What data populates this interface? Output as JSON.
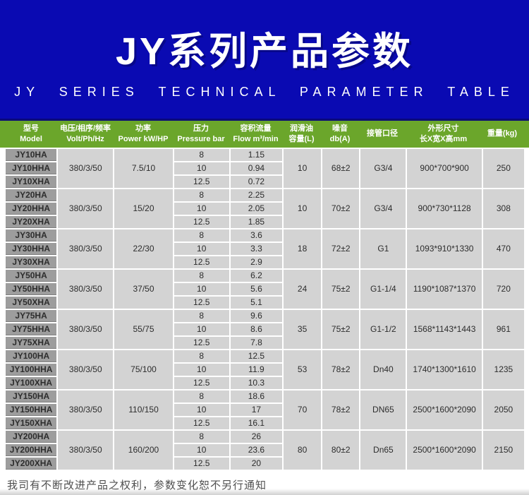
{
  "banner": {
    "title": "JY系列产品参数",
    "subtitle": "JY SERIES TECHNICAL PARAMETER TABLE",
    "bg_color": "#0a0ab2",
    "border_color": "#0b0b77"
  },
  "table": {
    "header_bg_color": "#6ba62b",
    "model_cell_color": "#9d9d9d",
    "data_cell_color": "#d3d3d3",
    "columns": [
      {
        "line1": "型号",
        "line2": "Model"
      },
      {
        "line1": "电压/相序/频率",
        "line2": "Volt/Ph/Hz"
      },
      {
        "line1": "功率",
        "line2": "Power kW/HP"
      },
      {
        "line1": "压力",
        "line2": "Pressure bar"
      },
      {
        "line1": "容积流量",
        "line2": "Flow m³/min"
      },
      {
        "line1": "润滑油",
        "line2": "容量(L)"
      },
      {
        "line1": "噪音",
        "line2": "db(A)"
      },
      {
        "line1": "接管口径",
        "line2": ""
      },
      {
        "line1": "外形尺寸",
        "line2": "长X宽X高mm"
      },
      {
        "line1": "重量(kg)",
        "line2": ""
      }
    ],
    "groups": [
      {
        "models": [
          "JY10HA",
          "JY10HHA",
          "JY10XHA"
        ],
        "volt": "380/3/50",
        "power": "7.5/10",
        "pressure": [
          "8",
          "10",
          "12.5"
        ],
        "flow": [
          "1.15",
          "0.94",
          "0.72"
        ],
        "oil": "10",
        "noise": "68±2",
        "pipe": "G3/4",
        "dims": "900*700*900",
        "weight": "250"
      },
      {
        "models": [
          "JY20HA",
          "JY20HHA",
          "JY20XHA"
        ],
        "volt": "380/3/50",
        "power": "15/20",
        "pressure": [
          "8",
          "10",
          "12.5"
        ],
        "flow": [
          "2.25",
          "2.05",
          "1.85"
        ],
        "oil": "10",
        "noise": "70±2",
        "pipe": "G3/4",
        "dims": "900*730*1128",
        "weight": "308"
      },
      {
        "models": [
          "JY30HA",
          "JY30HHA",
          "JY30XHA"
        ],
        "volt": "380/3/50",
        "power": "22/30",
        "pressure": [
          "8",
          "10",
          "12.5"
        ],
        "flow": [
          "3.6",
          "3.3",
          "2.9"
        ],
        "oil": "18",
        "noise": "72±2",
        "pipe": "G1",
        "dims": "1093*910*1330",
        "weight": "470"
      },
      {
        "models": [
          "JY50HA",
          "JY50HHA",
          "JY50XHA"
        ],
        "volt": "380/3/50",
        "power": "37/50",
        "pressure": [
          "8",
          "10",
          "12.5"
        ],
        "flow": [
          "6.2",
          "5.6",
          "5.1"
        ],
        "oil": "24",
        "noise": "75±2",
        "pipe": "G1-1/4",
        "dims": "1190*1087*1370",
        "weight": "720"
      },
      {
        "models": [
          "JY75HA",
          "JY75HHA",
          "JY75XHA"
        ],
        "volt": "380/3/50",
        "power": "55/75",
        "pressure": [
          "8",
          "10",
          "12.5"
        ],
        "flow": [
          "9.6",
          "8.6",
          "7.8"
        ],
        "oil": "35",
        "noise": "75±2",
        "pipe": "G1-1/2",
        "dims": "1568*1143*1443",
        "weight": "961"
      },
      {
        "models": [
          "JY100HA",
          "JY100HHA",
          "JY100XHA"
        ],
        "volt": "380/3/50",
        "power": "75/100",
        "pressure": [
          "8",
          "10",
          "12.5"
        ],
        "flow": [
          "12.5",
          "11.9",
          "10.3"
        ],
        "oil": "53",
        "noise": "78±2",
        "pipe": "Dn40",
        "dims": "1740*1300*1610",
        "weight": "1235"
      },
      {
        "models": [
          "JY150HA",
          "JY150HHA",
          "JY150XHA"
        ],
        "volt": "380/3/50",
        "power": "110/150",
        "pressure": [
          "8",
          "10",
          "12.5"
        ],
        "flow": [
          "18.6",
          "17",
          "16.1"
        ],
        "oil": "70",
        "noise": "78±2",
        "pipe": "DN65",
        "dims": "2500*1600*2090",
        "weight": "2050"
      },
      {
        "models": [
          "JY200HA",
          "JY200HHA",
          "JY200XHA"
        ],
        "volt": "380/3/50",
        "power": "160/200",
        "pressure": [
          "8",
          "10",
          "12.5"
        ],
        "flow": [
          "26",
          "23.6",
          "20"
        ],
        "oil": "80",
        "noise": "80±2",
        "pipe": "Dn65",
        "dims": "2500*1600*2090",
        "weight": "2150"
      }
    ]
  },
  "footer": {
    "note": "我司有不断改进产品之权利，参数变化恕不另行通知"
  }
}
